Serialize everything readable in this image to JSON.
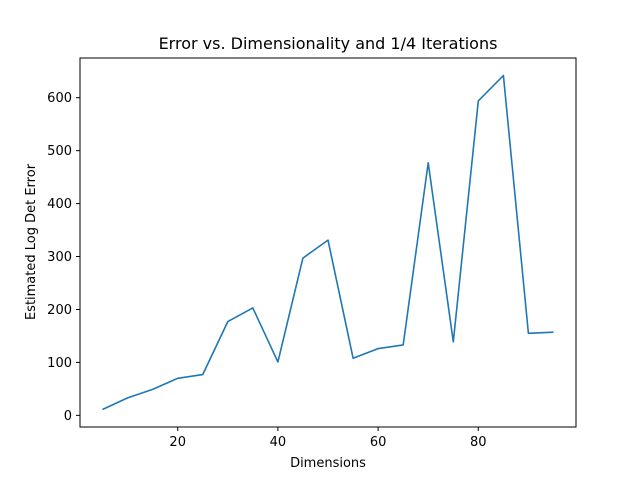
{
  "chart_data": {
    "type": "line",
    "title": "Error vs. Dimensionality and 1/4 Iterations",
    "xlabel": "Dimensions",
    "ylabel": "Estimated Log Det Error",
    "xlim": [
      0.5,
      99.5
    ],
    "ylim": [
      -22,
      675
    ],
    "xticks": [
      20,
      40,
      60,
      80
    ],
    "yticks": [
      0,
      100,
      200,
      300,
      400,
      500,
      600
    ],
    "grid": false,
    "legend": "none",
    "series": [
      {
        "color": "#1f77b4",
        "x": [
          5,
          10,
          15,
          20,
          25,
          30,
          35,
          40,
          45,
          50,
          55,
          60,
          65,
          70,
          75,
          80,
          85,
          90,
          95
        ],
        "y": [
          11,
          33,
          49,
          70,
          77,
          177,
          203,
          101,
          297,
          331,
          108,
          126,
          133,
          477,
          139,
          594,
          642,
          155,
          157
        ]
      }
    ]
  }
}
